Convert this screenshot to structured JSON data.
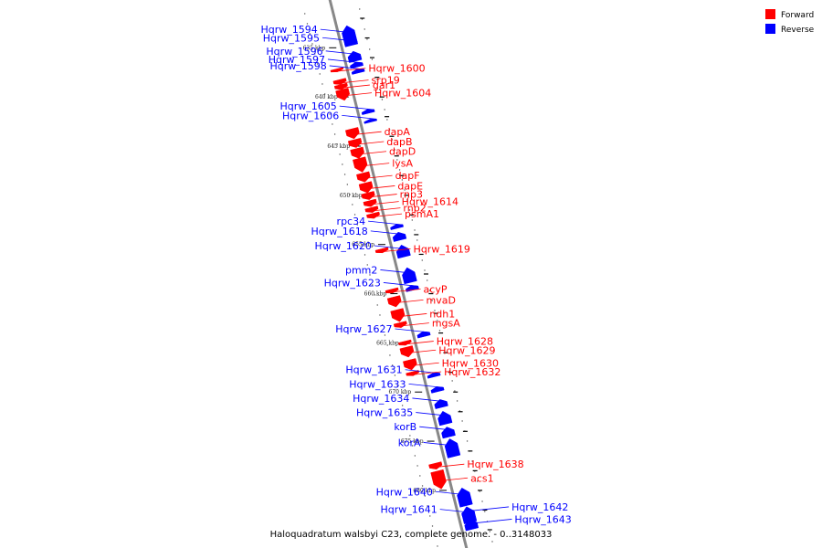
{
  "caption": "Haloquadratum walsbyi C23, complete genome. - 0..3148033",
  "legend": [
    {
      "label": "Forward",
      "color": "#ff0000"
    },
    {
      "label": "Reverse",
      "color": "#0000ff"
    }
  ],
  "colors": {
    "forward": "#ff0000",
    "reverse": "#0000ff",
    "backbone": "#888888"
  },
  "scale": {
    "start_kbp": 632,
    "end_kbp": 684
  },
  "ticks": [
    "635 kbp",
    "640 kbp",
    "645 kbp",
    "650 kbp",
    "655 kbp",
    "660 kbp",
    "665 kbp",
    "670 kbp",
    "675 kbp",
    "680 kbp"
  ],
  "genes": {
    "reverse_left": [
      {
        "name": "Hqrw_1594",
        "kbp": 633.0,
        "len": 1.8
      },
      {
        "name": "Hqrw_1595",
        "kbp": 634.5,
        "len": 0.5
      },
      {
        "name": "Hqrw_1596",
        "kbp": 635.6,
        "len": 1.0
      },
      {
        "name": "Hqrw_1597",
        "kbp": 636.7,
        "len": 0.5
      },
      {
        "name": "Hqrw_1598",
        "kbp": 637.4,
        "len": 0.4
      },
      {
        "name": "Hqrw_1605",
        "kbp": 641.5,
        "len": 0.4
      },
      {
        "name": "Hqrw_1606",
        "kbp": 642.5,
        "len": 0.3
      },
      {
        "name": "rpc34",
        "kbp": 653.2,
        "len": 0.4
      },
      {
        "name": "Hqrw_1618",
        "kbp": 654.0,
        "len": 0.8
      },
      {
        "name": "Hqrw_1620",
        "kbp": 655.3,
        "len": 1.2
      },
      {
        "name": "pmm2",
        "kbp": 657.6,
        "len": 1.5
      },
      {
        "name": "Hqrw_1623",
        "kbp": 659.4,
        "len": 0.5
      },
      {
        "name": "Hqrw_1627",
        "kbp": 664.1,
        "len": 0.5
      },
      {
        "name": "Hqrw_1631",
        "kbp": 668.3,
        "len": 0.4
      },
      {
        "name": "Hqrw_1633",
        "kbp": 669.7,
        "len": 0.5
      },
      {
        "name": "Hqrw_1634",
        "kbp": 671.0,
        "len": 0.8
      },
      {
        "name": "Hqrw_1635",
        "kbp": 672.2,
        "len": 1.3
      },
      {
        "name": "korB",
        "kbp": 673.8,
        "len": 1.0
      },
      {
        "name": "korA",
        "kbp": 675.0,
        "len": 1.8
      },
      {
        "name": "Hqrw_1640",
        "kbp": 680.0,
        "len": 1.8
      },
      {
        "name": "Hqrw_1641",
        "kbp": 681.9,
        "len": 1.6
      }
    ],
    "reverse_right": [
      {
        "name": "Hqrw_1642",
        "kbp": 682.2,
        "len": 0.5
      },
      {
        "name": "Hqrw_1643",
        "kbp": 683.2,
        "len": 1.0
      }
    ],
    "forward_right": [
      {
        "name": "Hqrw_1600",
        "kbp": 636.9,
        "len": 0.3
      },
      {
        "name": "srp19",
        "kbp": 638.0,
        "len": 0.5
      },
      {
        "name": "gar1",
        "kbp": 638.5,
        "len": 0.5
      },
      {
        "name": "Hqrw_1604",
        "kbp": 639.0,
        "len": 1.1
      },
      {
        "name": "dapA",
        "kbp": 643.0,
        "len": 1.0
      },
      {
        "name": "dapB",
        "kbp": 644.1,
        "len": 0.8
      },
      {
        "name": "dapD",
        "kbp": 645.0,
        "len": 1.0
      },
      {
        "name": "lysA",
        "kbp": 646.0,
        "len": 1.4
      },
      {
        "name": "dapF",
        "kbp": 647.5,
        "len": 0.9
      },
      {
        "name": "dapE",
        "kbp": 648.5,
        "len": 1.0
      },
      {
        "name": "rnp3",
        "kbp": 649.5,
        "len": 0.7
      },
      {
        "name": "Hqrw_1614",
        "kbp": 650.3,
        "len": 0.6
      },
      {
        "name": "rnp2",
        "kbp": 651.0,
        "len": 0.5
      },
      {
        "name": "psmA1",
        "kbp": 651.6,
        "len": 0.5
      },
      {
        "name": "Hqrw_1619",
        "kbp": 655.2,
        "len": 0.4
      },
      {
        "name": "acyP",
        "kbp": 659.3,
        "len": 0.4
      },
      {
        "name": "mvaD",
        "kbp": 660.1,
        "len": 1.0
      },
      {
        "name": "ndh1",
        "kbp": 661.4,
        "len": 1.2
      },
      {
        "name": "mgsA",
        "kbp": 662.7,
        "len": 0.5
      },
      {
        "name": "Hqrw_1628",
        "kbp": 664.6,
        "len": 0.4
      },
      {
        "name": "Hqrw_1629",
        "kbp": 665.2,
        "len": 1.0
      },
      {
        "name": "Hqrw_1630",
        "kbp": 666.5,
        "len": 1.0
      },
      {
        "name": "Hqrw_1632",
        "kbp": 667.7,
        "len": 0.4
      },
      {
        "name": "Hqrw_1638",
        "kbp": 677.0,
        "len": 0.6
      },
      {
        "name": "acs1",
        "kbp": 677.8,
        "len": 1.8
      }
    ]
  }
}
